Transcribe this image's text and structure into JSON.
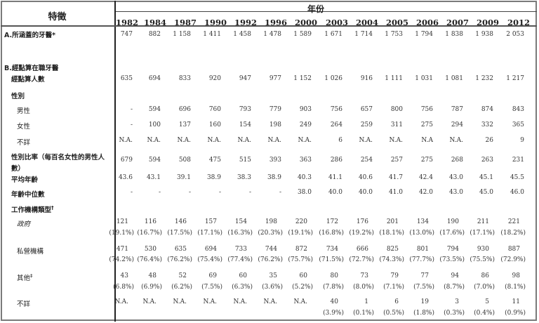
{
  "header": {
    "feature_label": "特徵",
    "year_group_label": "年份",
    "years": [
      "1982",
      "1984",
      "1987",
      "1990",
      "1992",
      "1996",
      "2000",
      "2003",
      "2004",
      "2005",
      "2006",
      "2007",
      "2009",
      "2012"
    ]
  },
  "rows": {
    "a_dentists": {
      "label": "A.所涵蓋的牙醫*",
      "values": [
        "747",
        "882",
        "1 158",
        "1 411",
        "1 458",
        "1 478",
        "1 589",
        "1 671",
        "1 714",
        "1 753",
        "1 794",
        "1 838",
        "1 938",
        "2 053"
      ]
    },
    "b_section": {
      "label": "B.經點算在職牙醫"
    },
    "b_enumerated": {
      "label": "經點算人數",
      "values": [
        "635",
        "694",
        "833",
        "920",
        "947",
        "977",
        "1 152",
        "1 026",
        "916",
        "1 111",
        "1 031",
        "1 081",
        "1 232",
        "1 217"
      ]
    },
    "sex_heading": {
      "label": "性別"
    },
    "male": {
      "label": "男性",
      "values": [
        "-",
        "594",
        "696",
        "760",
        "793",
        "779",
        "903",
        "756",
        "657",
        "800",
        "756",
        "787",
        "874",
        "843"
      ]
    },
    "female": {
      "label": "女性",
      "values": [
        "-",
        "100",
        "137",
        "160",
        "154",
        "198",
        "249",
        "264",
        "259",
        "311",
        "275",
        "294",
        "332",
        "365"
      ]
    },
    "sex_unknown": {
      "label": "不詳",
      "values": [
        "N.A.",
        "N.A.",
        "N.A.",
        "N.A.",
        "N.A.",
        "N.A.",
        "N.A.",
        "6",
        "N.A.",
        "N.A.",
        "N.A",
        "N.A.",
        "26",
        "9"
      ]
    },
    "sex_ratio": {
      "label_line1": "性別比率（每百名女性的男性人",
      "label_line2": "數）",
      "values": [
        "679",
        "594",
        "508",
        "475",
        "515",
        "393",
        "363",
        "286",
        "254",
        "257",
        "275",
        "268",
        "263",
        "231"
      ]
    },
    "mean_age": {
      "label": "平均年齡",
      "values": [
        "43.6",
        "43.1",
        "39.1",
        "38.9",
        "38.3",
        "38.9",
        "40.3",
        "41.1",
        "40.6",
        "41.7",
        "42.4",
        "43.0",
        "45.1",
        "45.5"
      ]
    },
    "median_age": {
      "label": "年齡中位數",
      "values": [
        "-",
        "-",
        "-",
        "-",
        "-",
        "-",
        "38.0",
        "40.0",
        "40.0",
        "41.0",
        "42.0",
        "43.0",
        "45.0",
        "46.0"
      ]
    },
    "work_type_heading": {
      "label": "工作機構類型",
      "mark": "†"
    },
    "government": {
      "label": "政府",
      "values": [
        "121",
        "116",
        "146",
        "157",
        "154",
        "198",
        "220",
        "172",
        "176",
        "201",
        "134",
        "190",
        "211",
        "221"
      ],
      "percents": [
        "(19.1%)",
        "(16.7%)",
        "(17.5%)",
        "(17.1%)",
        "(16.3%)",
        "(20.3%)",
        "(19.1%)",
        "(16.8%)",
        "(19.2%)",
        "(18.1%)",
        "(13.0%)",
        "(17.6%)",
        "(17.1%)",
        "(18.2%)"
      ]
    },
    "private": {
      "label": "私營機構",
      "values": [
        "471",
        "530",
        "635",
        "694",
        "733",
        "744",
        "872",
        "734",
        "666",
        "825",
        "801",
        "794",
        "930",
        "887"
      ],
      "percents": [
        "(74.2%)",
        "(76.4%)",
        "(76.2%)",
        "(75.4%)",
        "(77.4%)",
        "(76.2%)",
        "(75.7%)",
        "(71.5%)",
        "(72.7%)",
        "(74.3%)",
        "(77.7%)",
        "(73.5%)",
        "(75.5%)",
        "(72.9%)"
      ]
    },
    "others": {
      "label": "其他",
      "mark": "‡",
      "values": [
        "43",
        "48",
        "52",
        "69",
        "60",
        "35",
        "60",
        "80",
        "73",
        "79",
        "77",
        "94",
        "86",
        "98"
      ],
      "percents": [
        "(6.8%)",
        "(6.9%)",
        "(6.2%)",
        "(7.5%)",
        "(6.3%)",
        "(3.6%)",
        "(5.2%)",
        "(7.8%)",
        "(8.0%)",
        "(7.1%)",
        "(7.5%)",
        "(8.7%)",
        "(7.0%)",
        "(8.1%)"
      ]
    },
    "work_unknown": {
      "label": "不詳",
      "values": [
        "N.A.",
        "N.A.",
        "N.A.",
        "N.A.",
        "N.A.",
        "N.A.",
        "N.A.",
        "40",
        "1",
        "6",
        "19",
        "3",
        "5",
        "11"
      ],
      "percents": [
        "",
        "",
        "",
        "",
        "",
        "",
        "",
        "(3.9%)",
        "(0.1%)",
        "(0.5%)",
        "(1.8%)",
        "(0.3%)",
        "(0.4%)",
        "(0.9%)"
      ]
    }
  }
}
